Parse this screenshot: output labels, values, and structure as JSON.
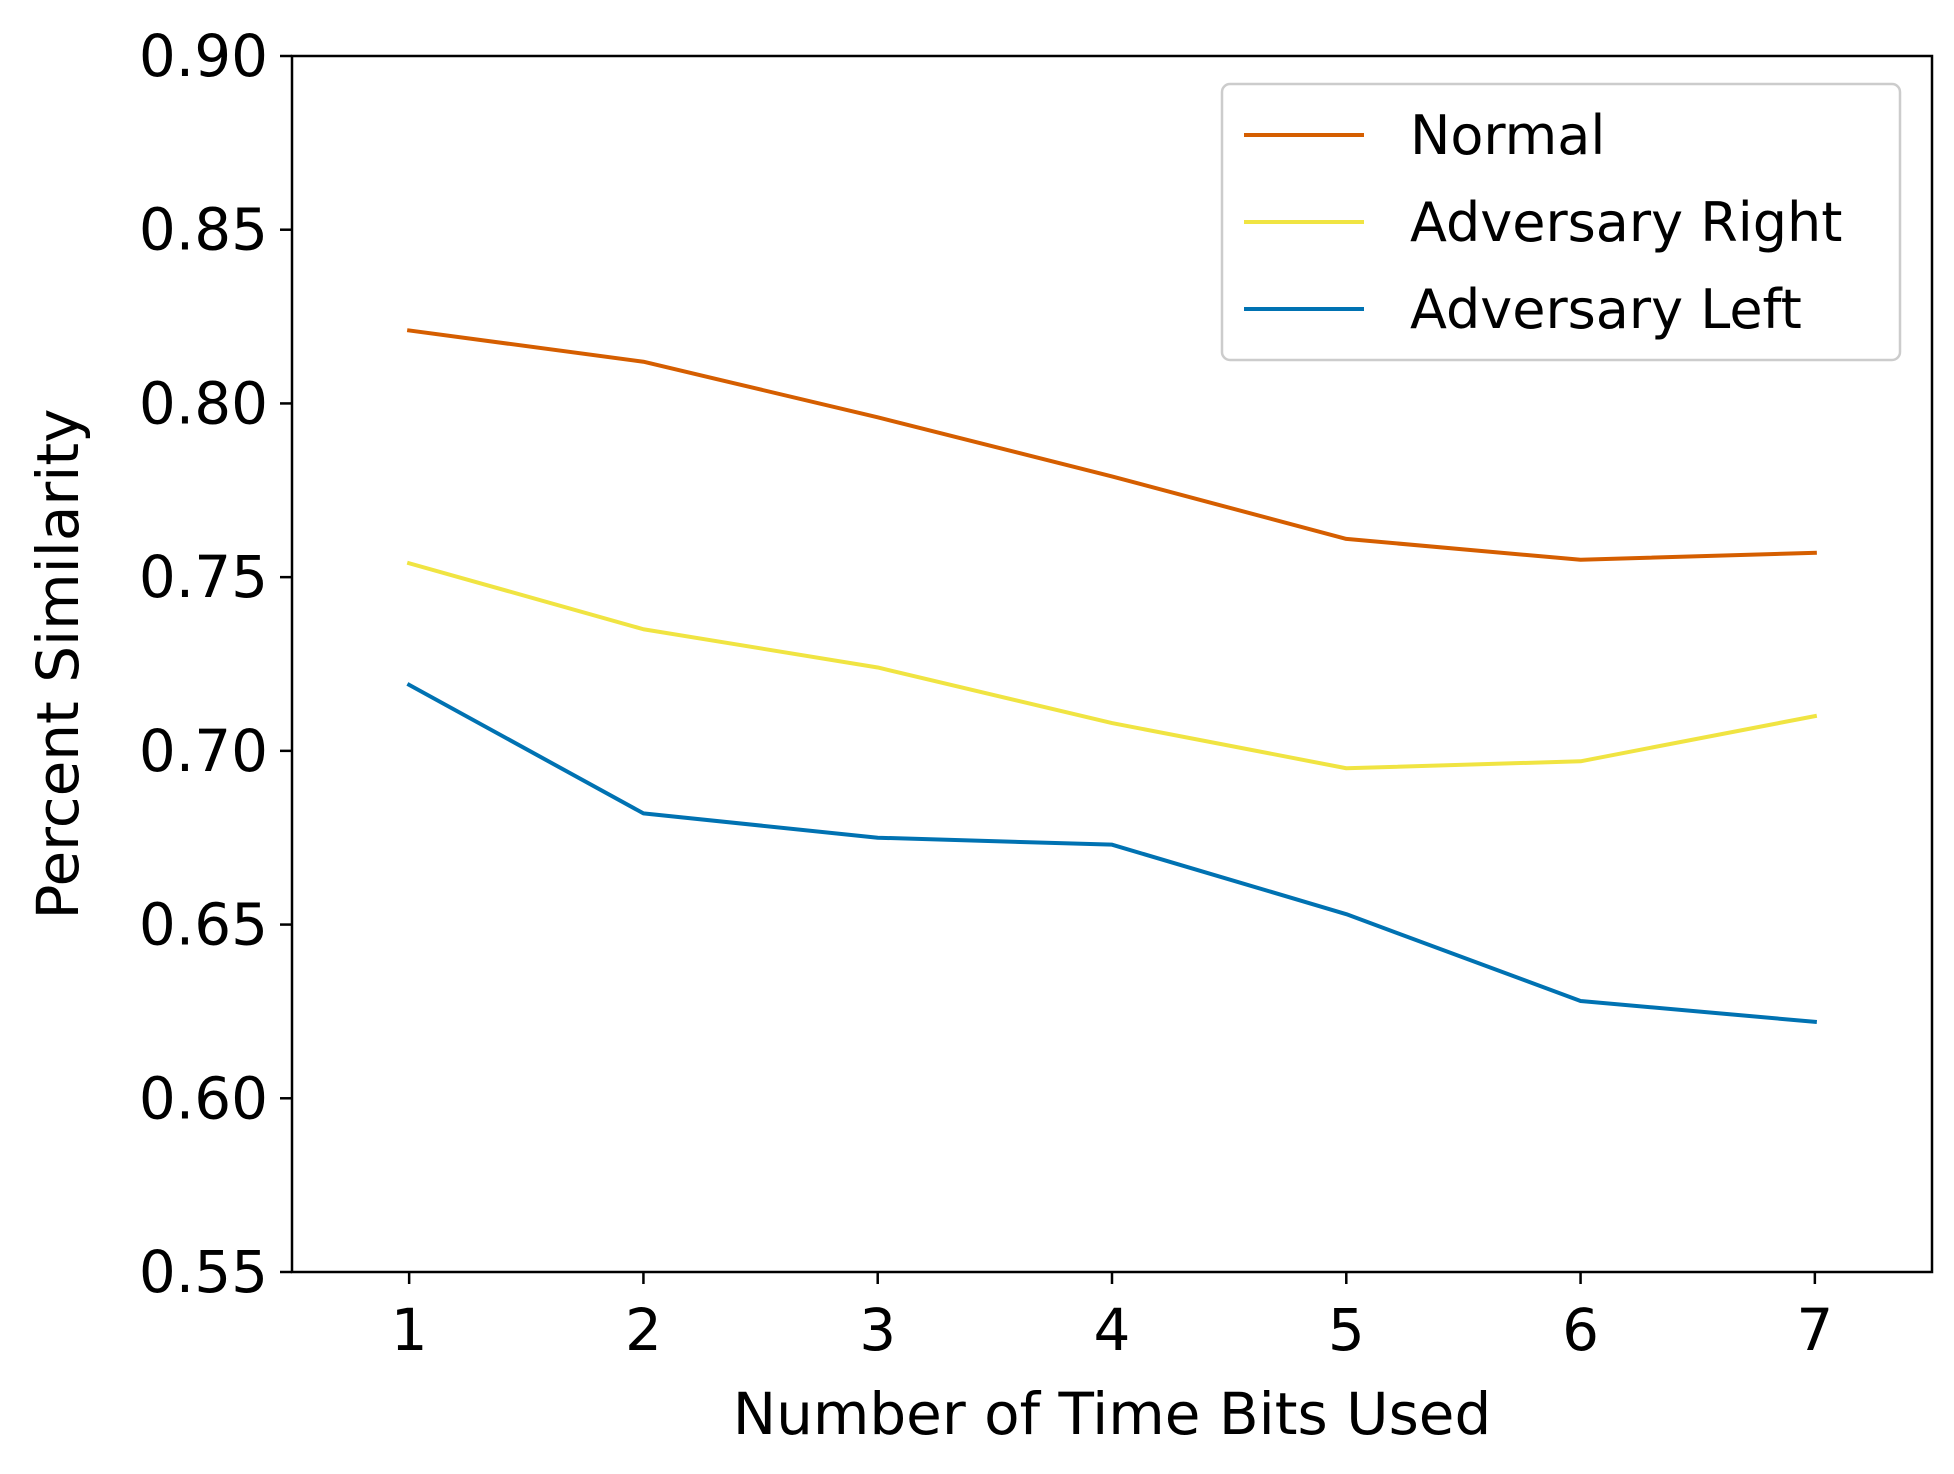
{
  "chart_data": {
    "type": "line",
    "title": "",
    "xlabel": "Number of Time Bits Used",
    "ylabel": "Percent Similarity",
    "x": [
      1,
      2,
      3,
      4,
      5,
      6,
      7
    ],
    "xlim": [
      0.5,
      7.5
    ],
    "ylim": [
      0.55,
      0.9
    ],
    "x_ticks": [
      "1",
      "2",
      "3",
      "4",
      "5",
      "6",
      "7"
    ],
    "y_ticks": [
      "0.55",
      "0.60",
      "0.65",
      "0.70",
      "0.75",
      "0.80",
      "0.85",
      "0.90"
    ],
    "grid": false,
    "legend_position": "top-right",
    "series": [
      {
        "name": "Normal",
        "color": "#D55E00",
        "values": [
          0.821,
          0.812,
          0.796,
          0.779,
          0.761,
          0.755,
          0.757
        ]
      },
      {
        "name": "Adversary Right",
        "color": "#F0E442",
        "values": [
          0.754,
          0.735,
          0.724,
          0.708,
          0.695,
          0.697,
          0.71
        ]
      },
      {
        "name": "Adversary Left",
        "color": "#0072B2",
        "values": [
          0.719,
          0.682,
          0.675,
          0.673,
          0.653,
          0.628,
          0.622
        ]
      }
    ]
  }
}
